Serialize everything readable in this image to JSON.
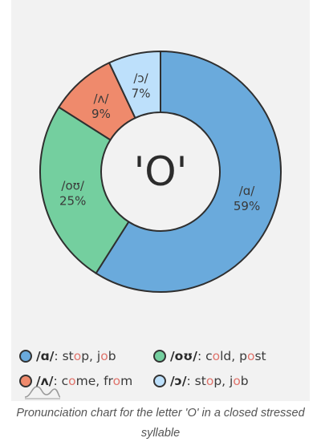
{
  "chart_data": {
    "type": "pie",
    "donut": true,
    "center_label": "'O'",
    "slices": [
      {
        "label": "/ɑ/",
        "value": 59,
        "value_label": "59%",
        "color": "#6aaadc"
      },
      {
        "label": "/oʊ/",
        "value": 25,
        "value_label": "25%",
        "color": "#74cf9f"
      },
      {
        "label": "/ʌ/",
        "value": 9,
        "value_label": "9%",
        "color": "#ef8a6c"
      },
      {
        "label": "/ɔ/",
        "value": 7,
        "value_label": "7%",
        "color": "#bde0fb"
      }
    ],
    "legend": {
      "placement": "bottom",
      "entries": [
        {
          "ipa": "/ɑ/",
          "sep": ": ",
          "words": [
            [
              {
                "t": "st"
              },
              {
                "t": "o",
                "hl": true
              },
              {
                "t": "p, j"
              },
              {
                "t": "o",
                "hl": true
              },
              {
                "t": "b"
              }
            ]
          ],
          "color": "#6aaadc"
        },
        {
          "ipa": "/oʊ/",
          "sep": ": ",
          "words": [
            [
              {
                "t": "c"
              },
              {
                "t": "o",
                "hl": true
              },
              {
                "t": "ld, p"
              },
              {
                "t": "o",
                "hl": true
              },
              {
                "t": "st"
              }
            ]
          ],
          "color": "#74cf9f"
        },
        {
          "ipa": "/ʌ/",
          "sep": ": ",
          "words": [
            [
              {
                "t": "c"
              },
              {
                "t": "o",
                "hl": true
              },
              {
                "t": "me, fr"
              },
              {
                "t": "o",
                "hl": true
              },
              {
                "t": "m"
              }
            ]
          ],
          "color": "#ef8a6c"
        },
        {
          "ipa": "/ɔ/",
          "sep": ": ",
          "words": [
            [
              {
                "t": "st"
              },
              {
                "t": "o",
                "hl": true
              },
              {
                "t": "p, j"
              },
              {
                "t": "o",
                "hl": true
              },
              {
                "t": "b"
              }
            ]
          ],
          "color": "#bde0fb"
        }
      ]
    }
  },
  "caption": "Pronunciation chart for the letter 'O' in a closed stressed syllable",
  "icons": {
    "logo": "wave-logo-icon"
  }
}
